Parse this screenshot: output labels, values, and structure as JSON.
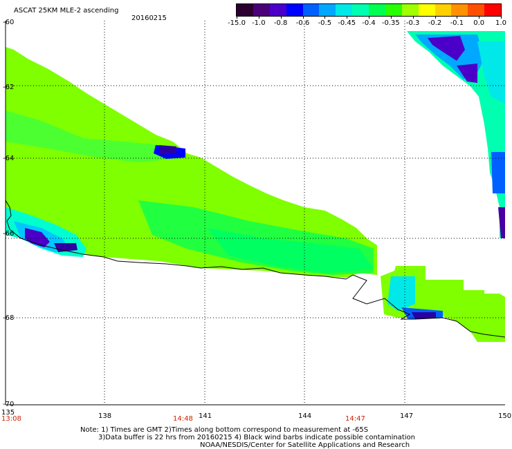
{
  "header": {
    "title": "ASCAT 25KM MLE-2 ascending",
    "date": "20160215"
  },
  "colorbar": {
    "colors": [
      "#2a0030",
      "#4a0078",
      "#4a00c8",
      "#0000ff",
      "#0060ff",
      "#00a8ff",
      "#00e8e8",
      "#00ffb0",
      "#00ff50",
      "#28ff00",
      "#a0ff00",
      "#ffff00",
      "#ffd000",
      "#ff9000",
      "#ff5000",
      "#ff0000"
    ],
    "labels": [
      "-15.0",
      "-1.0",
      "-0.8",
      "-0.6",
      "-0.5",
      "-0.45",
      "-0.4",
      "-0.35",
      "-0.3",
      "-0.2",
      "-0.1",
      "0.0",
      "1.0"
    ]
  },
  "axes": {
    "lat_labels": [
      "-60",
      "-62",
      "-64",
      "-66",
      "-68",
      "-70"
    ],
    "lon_labels": [
      "135",
      "138",
      "141",
      "144",
      "147",
      "150"
    ]
  },
  "times": [
    "13:08",
    "14:48",
    "14:47"
  ],
  "notes": {
    "line1": "Note: 1) Times are GMT 2)Times along bottom correspond to measurement at -65S",
    "line2": "3)Data buffer is 22 hrs from 20160215 4) Black wind barbs indicate possible contamination",
    "line3": "NOAA/NESDIS/Center for Satellite Applications and Research"
  }
}
